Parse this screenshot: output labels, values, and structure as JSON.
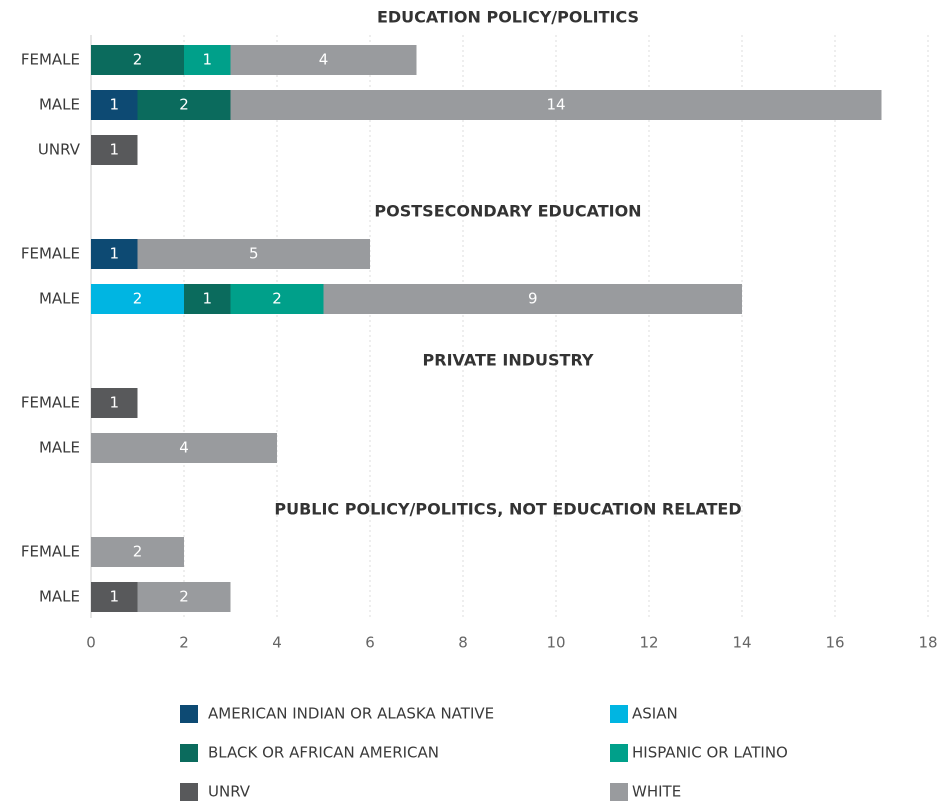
{
  "chart_data": {
    "type": "bar",
    "orientation": "horizontal",
    "stacked": true,
    "groups": [
      {
        "title": "EDUCATION POLICY/POLITICS",
        "categories": [
          "FEMALE",
          "MALE",
          "UNRV"
        ]
      },
      {
        "title": "POSTSECONDARY EDUCATION",
        "categories": [
          "FEMALE",
          "MALE"
        ]
      },
      {
        "title": "PRIVATE INDUSTRY",
        "categories": [
          "FEMALE",
          "MALE"
        ]
      },
      {
        "title": "PUBLIC POLICY/POLITICS, NOT EDUCATION RELATED",
        "categories": [
          "FEMALE",
          "MALE"
        ]
      }
    ],
    "series": [
      {
        "name": "AMERICAN INDIAN OR ALASKA NATIVE",
        "color": "#0d4a73",
        "values": [
          null,
          1,
          null,
          1,
          null,
          null,
          null,
          null,
          null
        ]
      },
      {
        "name": "ASIAN",
        "color": "#00b5e2",
        "values": [
          null,
          null,
          null,
          null,
          2,
          null,
          null,
          null,
          null
        ]
      },
      {
        "name": "BLACK OR AFRICAN AMERICAN",
        "color": "#0b6b5d",
        "values": [
          2,
          2,
          null,
          null,
          1,
          null,
          null,
          null,
          null
        ]
      },
      {
        "name": "HISPANIC OR LATINO",
        "color": "#00a08a",
        "values": [
          1,
          null,
          null,
          null,
          2,
          null,
          null,
          null,
          null
        ]
      },
      {
        "name": "UNRV",
        "color": "#58595b",
        "values": [
          null,
          null,
          1,
          null,
          null,
          1,
          null,
          null,
          1
        ]
      },
      {
        "name": "WHITE",
        "color": "#999b9e",
        "values": [
          4,
          14,
          null,
          5,
          9,
          null,
          4,
          2,
          2
        ]
      }
    ],
    "xlim": [
      0,
      18
    ],
    "xticks": [
      0,
      2,
      4,
      6,
      8,
      10,
      12,
      14,
      16,
      18
    ],
    "grid": true,
    "legend": "bottom"
  }
}
